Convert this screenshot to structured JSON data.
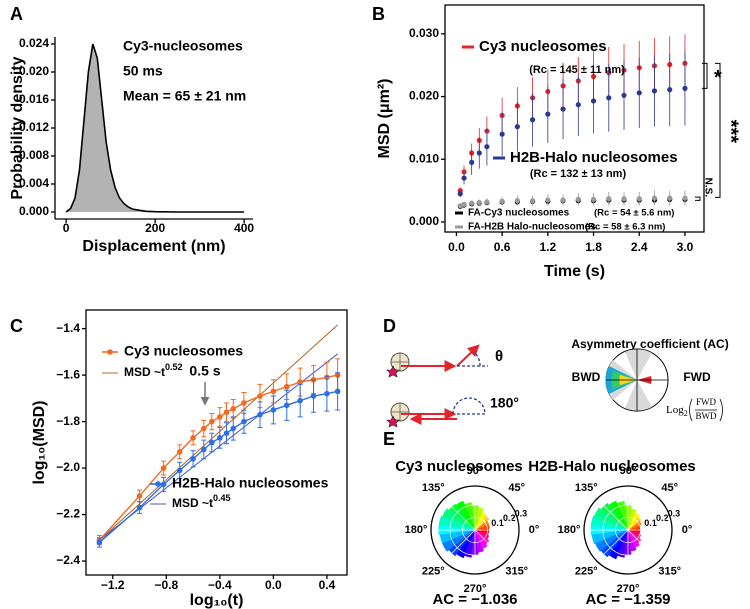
{
  "diagram": {
    "label": "D",
    "title": "Asymmetry coefficient (AC)",
    "bwd": "BWD",
    "fwd": "FWD",
    "theta": "θ",
    "angle": "180°",
    "formula_log": "Log",
    "formula_base": "2",
    "formula_num": "FWD",
    "formula_den": "BWD"
  },
  "chart_data": [
    {
      "panel": "A",
      "type": "area",
      "xlabel": "Displacement (nm)",
      "ylabel": "Probability density",
      "annotations": [
        "Cy3-nucleosomes",
        "50 ms",
        "Mean = 65 ± 21 nm"
      ],
      "x": [
        0,
        10,
        20,
        30,
        40,
        50,
        60,
        70,
        80,
        90,
        100,
        110,
        120,
        130,
        140,
        150,
        160,
        180,
        200,
        250,
        300,
        400
      ],
      "values": [
        0,
        0.0005,
        0.002,
        0.006,
        0.013,
        0.02,
        0.024,
        0.022,
        0.016,
        0.01,
        0.006,
        0.0035,
        0.002,
        0.0012,
        0.0007,
        0.0004,
        0.0003,
        0.0001,
        5e-05,
        0,
        0,
        0
      ],
      "color": "#b3b3b3",
      "line_color": "#000000",
      "xlim": [
        -25,
        420
      ],
      "xticks": [
        0,
        200,
        400
      ],
      "ylim": [
        -0.001,
        0.025
      ],
      "yticks": [
        {
          "value": 0,
          "label": "0.000"
        },
        {
          "value": 0.004,
          "label": "0.004"
        },
        {
          "value": 0.008,
          "label": "0.008"
        },
        {
          "value": 0.012,
          "label": "0.012"
        },
        {
          "value": 0.016,
          "label": "0.016"
        },
        {
          "value": 0.02,
          "label": "0.020"
        },
        {
          "value": 0.024,
          "label": "0.024"
        }
      ]
    },
    {
      "panel": "B",
      "type": "scatter",
      "xlabel": "Time (s)",
      "ylabel": "MSD (μm²)",
      "annotations": [
        "*",
        "***",
        "N.S."
      ],
      "x": [
        0.05,
        0.1,
        0.2,
        0.3,
        0.4,
        0.6,
        0.8,
        1.0,
        1.2,
        1.4,
        1.6,
        1.8,
        2.0,
        2.2,
        2.4,
        2.6,
        2.8,
        3.0
      ],
      "series": [
        {
          "name": "Cy3 nucleosomes",
          "rc_label": "(Rc = 145 ± 11 nm)",
          "color": "#e3242b",
          "values": [
            0.005,
            0.008,
            0.011,
            0.013,
            0.0145,
            0.017,
            0.0185,
            0.0198,
            0.0208,
            0.0217,
            0.0225,
            0.0232,
            0.0238,
            0.0242,
            0.0246,
            0.0249,
            0.0251,
            0.0253
          ],
          "errors": [
            0.0005,
            0.001,
            0.0015,
            0.002,
            0.0023,
            0.0028,
            0.003,
            0.0033,
            0.0035,
            0.0037,
            0.0038,
            0.004,
            0.0041,
            0.0042,
            0.0043,
            0.0044,
            0.0045,
            0.0046
          ]
        },
        {
          "name": "H2B-Halo nucleosomes",
          "rc_label": "(Rc = 132 ± 13 nm)",
          "color": "#2b3990",
          "values": [
            0.0045,
            0.007,
            0.0095,
            0.011,
            0.012,
            0.014,
            0.0152,
            0.0163,
            0.0172,
            0.018,
            0.0187,
            0.0193,
            0.0198,
            0.0202,
            0.0206,
            0.0209,
            0.0211,
            0.0213
          ],
          "errors": [
            0.0005,
            0.001,
            0.002,
            0.0025,
            0.003,
            0.0035,
            0.004,
            0.0043,
            0.0046,
            0.0048,
            0.005,
            0.0052,
            0.0054,
            0.0055,
            0.0056,
            0.0057,
            0.0058,
            0.0059
          ]
        },
        {
          "name": "FA-Cy3 nucleosomes",
          "rc_label": "(Rc = 54 ± 5.6 nm)",
          "color": "#000000",
          "values": [
            0.0025,
            0.0027,
            0.0029,
            0.003,
            0.0031,
            0.0032,
            0.0032,
            0.0033,
            0.0033,
            0.0034,
            0.0034,
            0.0034,
            0.0035,
            0.0035,
            0.0035,
            0.0035,
            0.0036,
            0.0036
          ],
          "errors": [
            0.0002,
            0.0002,
            0.0003,
            0.0003,
            0.0003,
            0.0004,
            0.0004,
            0.0004,
            0.0005,
            0.0005,
            0.0005,
            0.0005,
            0.0006,
            0.0006,
            0.0006,
            0.0006,
            0.0006,
            0.0006
          ]
        },
        {
          "name": "FA-H2B Halo-nucleosomes",
          "rc_label": "(Rc = 58 ± 6.3 nm)",
          "color": "#9a9a9a",
          "values": [
            0.0026,
            0.0028,
            0.003,
            0.0031,
            0.0032,
            0.0033,
            0.0034,
            0.0034,
            0.0035,
            0.0035,
            0.0036,
            0.0036,
            0.0037,
            0.0037,
            0.0037,
            0.0038,
            0.0038,
            0.0038
          ],
          "errors": [
            0.0003,
            0.0003,
            0.0004,
            0.0005,
            0.0006,
            0.0007,
            0.0008,
            0.0008,
            0.0009,
            0.0009,
            0.001,
            0.001,
            0.0011,
            0.0011,
            0.0011,
            0.0012,
            0.0012,
            0.0012
          ]
        }
      ],
      "xlim": [
        -0.15,
        3.25
      ],
      "xticks": [
        {
          "value": 0,
          "label": "0.0"
        },
        0.6,
        1.2,
        1.8,
        2.4,
        {
          "value": 3,
          "label": "3.0"
        }
      ],
      "ylim": [
        -0.0016,
        0.0346
      ],
      "yticks": [
        {
          "value": 0,
          "label": "0.000"
        },
        {
          "value": 0.01,
          "label": "0.010"
        },
        {
          "value": 0.02,
          "label": "0.020"
        },
        {
          "value": 0.03,
          "label": "0.030"
        }
      ]
    },
    {
      "panel": "C",
      "type": "line",
      "xlabel": "log₁₀(t)",
      "ylabel": "log₁₀(MSD)",
      "annotation": "0.5 s",
      "x": [
        -1.3,
        -1.0,
        -0.82,
        -0.7,
        -0.6,
        -0.52,
        -0.46,
        -0.4,
        -0.35,
        -0.3,
        -0.22,
        -0.1,
        0.0,
        0.1,
        0.2,
        0.3,
        0.4,
        0.48
      ],
      "series": [
        {
          "name": "Cy3 nucleosomes",
          "color": "#f26a21",
          "values": [
            -2.31,
            -2.12,
            -2.0,
            -1.93,
            -1.87,
            -1.83,
            -1.8,
            -1.78,
            -1.76,
            -1.745,
            -1.72,
            -1.69,
            -1.67,
            -1.65,
            -1.63,
            -1.62,
            -1.61,
            -1.6
          ],
          "errors": [
            0.02,
            0.025,
            0.03,
            0.03,
            0.03,
            0.035,
            0.035,
            0.04,
            0.04,
            0.04,
            0.045,
            0.05,
            0.05,
            0.055,
            0.06,
            0.06,
            0.065,
            0.07
          ]
        },
        {
          "name": "H2B-Halo nucleosomes",
          "color": "#2e6fe8",
          "values": [
            -2.32,
            -2.17,
            -2.07,
            -2.01,
            -1.96,
            -1.92,
            -1.89,
            -1.87,
            -1.85,
            -1.83,
            -1.8,
            -1.77,
            -1.75,
            -1.73,
            -1.71,
            -1.69,
            -1.68,
            -1.67
          ],
          "errors": [
            0.02,
            0.025,
            0.03,
            0.035,
            0.035,
            0.04,
            0.04,
            0.045,
            0.045,
            0.05,
            0.05,
            0.055,
            0.06,
            0.065,
            0.07,
            0.07,
            0.075,
            0.08
          ]
        }
      ],
      "fits": [
        {
          "label": "MSD ~t",
          "exponent": "0.52",
          "color": "#b5651d",
          "x": [
            -1.3,
            0.48
          ],
          "values": [
            -2.31,
            -1.384
          ]
        },
        {
          "label": "MSD ~t",
          "exponent": "0.45",
          "color": "#4455cc",
          "x": [
            -1.3,
            0.48
          ],
          "values": [
            -2.31,
            -1.509
          ]
        }
      ],
      "xlim": [
        -1.4,
        0.55
      ],
      "xticks": [
        {
          "value": -1.2,
          "label": "−1.2"
        },
        {
          "value": -0.8,
          "label": "−0.8"
        },
        {
          "value": -0.4,
          "label": "−0.4"
        },
        {
          "value": 0,
          "label": "0.0"
        },
        0.4
      ],
      "ylim": [
        -2.46,
        -1.32
      ],
      "yticks": [
        {
          "value": -2.4,
          "label": "−2.4"
        },
        {
          "value": -2.2,
          "label": "−2.2"
        },
        {
          "value": -2.0,
          "label": "−2.0"
        },
        {
          "value": -1.8,
          "label": "−1.8"
        },
        {
          "value": -1.6,
          "label": "−1.6"
        },
        {
          "value": -1.4,
          "label": "−1.4"
        }
      ]
    },
    {
      "panel": "E",
      "type": "polar",
      "title": "Cy3 nucleosomes",
      "title_color": "#e3242b",
      "ac_label": "AC = −1.036",
      "colormap": "hsv",
      "theta": [
        0,
        15,
        30,
        45,
        60,
        75,
        90,
        105,
        120,
        135,
        150,
        165,
        180,
        195,
        210,
        225,
        240,
        255,
        270,
        285,
        300,
        315,
        330,
        345
      ],
      "values": [
        0.11,
        0.115,
        0.12,
        0.14,
        0.15,
        0.18,
        0.2,
        0.22,
        0.25,
        0.26,
        0.28,
        0.29,
        0.29,
        0.28,
        0.28,
        0.26,
        0.24,
        0.22,
        0.2,
        0.18,
        0.16,
        0.14,
        0.12,
        0.11
      ],
      "rlim": [
        0,
        0.35
      ],
      "rticks": [
        0.1,
        0.2,
        0.3
      ],
      "thetaticks": [
        {
          "value": 0,
          "label": "0°"
        },
        {
          "value": 45,
          "label": "45°"
        },
        {
          "value": 90,
          "label": "90°"
        },
        {
          "value": 135,
          "label": "135°"
        },
        {
          "value": 180,
          "label": "180°"
        },
        {
          "value": 225,
          "label": "225°"
        },
        {
          "value": 270,
          "label": "270°"
        },
        {
          "value": 315,
          "label": "315°"
        }
      ]
    },
    {
      "type": "polar",
      "title": "H2B-Halo nucleosomes",
      "title_color": "#2b3990",
      "ac_label": "AC = −1.359",
      "colormap": "hsv",
      "theta": [
        0,
        15,
        30,
        45,
        60,
        75,
        90,
        105,
        120,
        135,
        150,
        165,
        180,
        195,
        210,
        225,
        240,
        255,
        270,
        285,
        300,
        315,
        330,
        345
      ],
      "values": [
        0.1,
        0.1,
        0.115,
        0.13,
        0.15,
        0.17,
        0.2,
        0.23,
        0.25,
        0.27,
        0.29,
        0.3,
        0.3,
        0.29,
        0.28,
        0.27,
        0.25,
        0.22,
        0.2,
        0.17,
        0.15,
        0.13,
        0.11,
        0.1
      ],
      "rlim": [
        0,
        0.35
      ],
      "rticks": [
        0.1,
        0.2,
        0.3
      ],
      "thetaticks": [
        {
          "value": 0,
          "label": "0°"
        },
        {
          "value": 45,
          "label": "45°"
        },
        {
          "value": 90,
          "label": "90°"
        },
        {
          "value": 135,
          "label": "135°"
        },
        {
          "value": 180,
          "label": "180°"
        },
        {
          "value": 225,
          "label": "225°"
        },
        {
          "value": 270,
          "label": "270°"
        },
        {
          "value": 315,
          "label": "315°"
        }
      ]
    }
  ]
}
